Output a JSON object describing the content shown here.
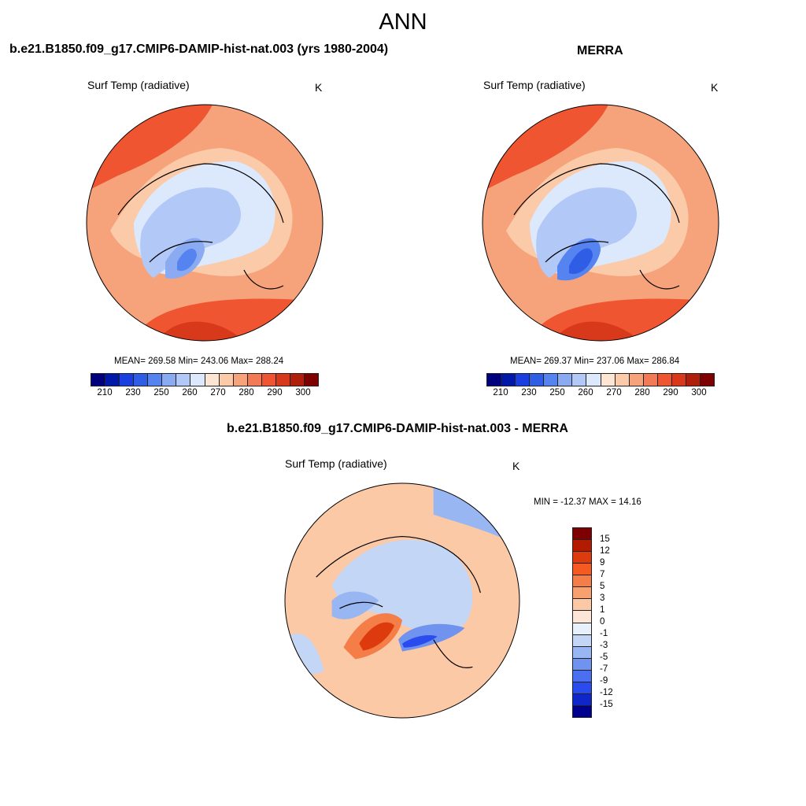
{
  "figure": {
    "suptitle": "ANN",
    "panel_left_title": "b.e21.B1850.f09_g17.CMIP6-DAMIP-hist-nat.003 (yrs 1980-2004)",
    "panel_right_title": "MERRA",
    "panel_diff_title": "b.e21.B1850.f09_g17.CMIP6-DAMIP-hist-nat.003 - MERRA"
  },
  "panels": {
    "left": {
      "variable": "Surf Temp (radiative)",
      "units": "K",
      "stats": "MEAN= 269.58  Min= 243.06  Max= 288.24"
    },
    "right": {
      "variable": "Surf Temp (radiative)",
      "units": "K",
      "stats": "MEAN= 269.37  Min= 237.06  Max= 286.84"
    },
    "diff": {
      "variable": "Surf Temp (radiative)",
      "units": "K",
      "stats": "MIN = -12.37 MAX =  14.16"
    }
  },
  "colorbars": {
    "abs": {
      "colors": [
        "#00007f",
        "#0019a8",
        "#1a3ee0",
        "#2f5de6",
        "#5583ef",
        "#8aaaf2",
        "#b2c8f7",
        "#dce8fb",
        "#fde5d3",
        "#fbcaa9",
        "#f6a37c",
        "#f27a54",
        "#ee5530",
        "#d8391a",
        "#b01f0c",
        "#7f0000"
      ],
      "ticks": [
        "210",
        "230",
        "250",
        "260",
        "270",
        "280",
        "290",
        "300"
      ]
    },
    "diff": {
      "colors": [
        "#7f0000",
        "#b31b00",
        "#dd3a0e",
        "#f45a22",
        "#f47d48",
        "#f7a171",
        "#fbc9a5",
        "#fde6d7",
        "#e8f0fb",
        "#c4d6f6",
        "#98b6f2",
        "#6f93ee",
        "#4a6ff0",
        "#2a4bee",
        "#0f27c9",
        "#00008f"
      ],
      "ticks": [
        "15",
        "12",
        "9",
        "7",
        "5",
        "3",
        "1",
        "0",
        "-1",
        "-3",
        "-5",
        "-7",
        "-9",
        "-12",
        "-15"
      ]
    }
  }
}
